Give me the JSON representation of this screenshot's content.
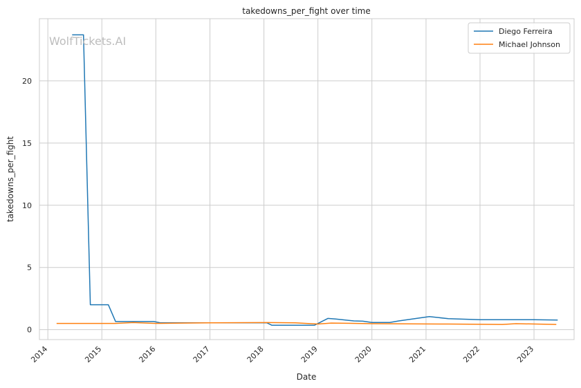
{
  "chart_data": {
    "type": "line",
    "title": "takedowns_per_fight over time",
    "xlabel": "Date",
    "ylabel": "takedowns_per_fight",
    "watermark": "WolfTickets.AI",
    "xlim": [
      "2013-11-05",
      "2023-09-29"
    ],
    "ylim": [
      -0.8,
      25.0
    ],
    "x_ticks": [
      "2014",
      "2015",
      "2016",
      "2017",
      "2018",
      "2019",
      "2020",
      "2021",
      "2022",
      "2023"
    ],
    "y_ticks": [
      0,
      5,
      10,
      15,
      20
    ],
    "grid": true,
    "legend_position": "top-right",
    "series": [
      {
        "name": "Diego Ferreira",
        "color": "#1f77b4",
        "points": [
          [
            "2014-06-14",
            23.7
          ],
          [
            "2014-08-30",
            23.7
          ],
          [
            "2014-10-15",
            2.0
          ],
          [
            "2015-02-14",
            2.0
          ],
          [
            "2015-04-04",
            0.65
          ],
          [
            "2015-12-19",
            0.65
          ],
          [
            "2016-01-30",
            0.55
          ],
          [
            "2017-06-30",
            0.55
          ],
          [
            "2018-01-20",
            0.55
          ],
          [
            "2018-02-24",
            0.35
          ],
          [
            "2018-12-08",
            0.35
          ],
          [
            "2019-03-09",
            0.9
          ],
          [
            "2019-05-01",
            0.85
          ],
          [
            "2019-09-01",
            0.7
          ],
          [
            "2019-11-01",
            0.68
          ],
          [
            "2020-01-01",
            0.58
          ],
          [
            "2020-05-01",
            0.58
          ],
          [
            "2020-07-01",
            0.7
          ],
          [
            "2021-01-23",
            1.05
          ],
          [
            "2021-06-01",
            0.88
          ],
          [
            "2022-01-01",
            0.8
          ],
          [
            "2023-01-01",
            0.8
          ],
          [
            "2023-06-10",
            0.77
          ]
        ]
      },
      {
        "name": "Michael Johnson",
        "color": "#ff7f0e",
        "points": [
          [
            "2014-03-01",
            0.5
          ],
          [
            "2015-04-01",
            0.5
          ],
          [
            "2015-08-01",
            0.57
          ],
          [
            "2016-01-01",
            0.5
          ],
          [
            "2017-01-01",
            0.55
          ],
          [
            "2018-02-01",
            0.57
          ],
          [
            "2018-08-01",
            0.55
          ],
          [
            "2019-01-01",
            0.45
          ],
          [
            "2019-04-01",
            0.53
          ],
          [
            "2020-01-01",
            0.48
          ],
          [
            "2021-06-01",
            0.45
          ],
          [
            "2022-06-01",
            0.42
          ],
          [
            "2022-09-01",
            0.48
          ],
          [
            "2023-06-01",
            0.42
          ]
        ]
      }
    ]
  }
}
